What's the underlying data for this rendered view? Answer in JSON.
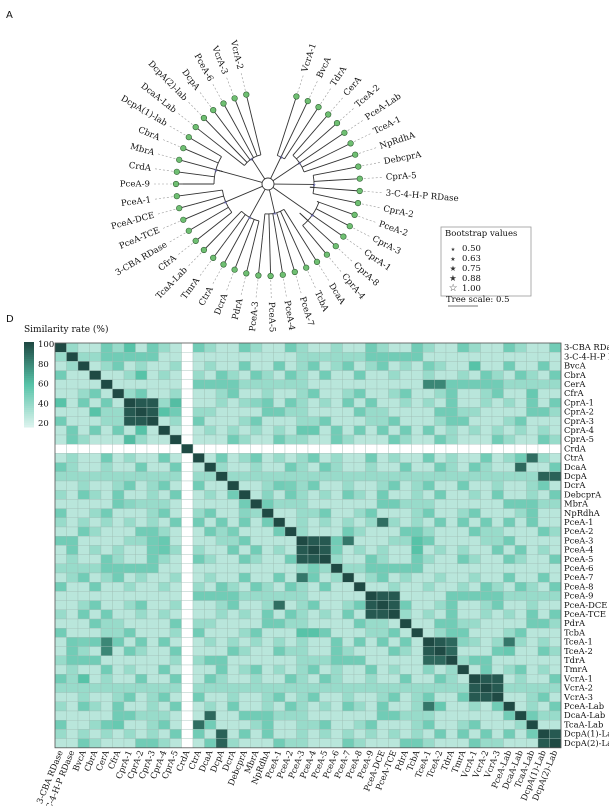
{
  "panel_a": {
    "letter": "A",
    "tree_tips": [
      "VcrA-1",
      "BvcA",
      "TdrA",
      "CerA",
      "TceA-2",
      "PceA-Lab",
      "TceA-1",
      "NpRdhA",
      "DebcprA",
      "CprA-5",
      "3-C-4-H-P RDase",
      "CprA-2",
      "PceA-2",
      "CprA-3",
      "CprA-1",
      "CprA-8",
      "CprA-4",
      "DcaA",
      "TcbA",
      "PceA-7",
      "PceA-4",
      "PceA-5",
      "PceA-3",
      "PdrA",
      "DcrA",
      "CtrA",
      "TmrA",
      "TcaA-Lab",
      "CfrA",
      "3-CBA RDase",
      "PceA-TCE",
      "PceA-DCE",
      "PceA-1",
      "PceA-9",
      "CrdA",
      "MbrA",
      "CbrA",
      "DcpA(1)-lab",
      "DcaA-Lab",
      "DcpA(2)-lab",
      "DcpA",
      "PceA-6",
      "VcrA-3",
      "VcrA-2"
    ],
    "legend_title": "Bootstrap values",
    "legend_values": [
      "0.50",
      "0.63",
      "0.75",
      "0.88",
      "1.00"
    ],
    "scale_label": "Tree scale: 0.5"
  },
  "panel_b": {
    "letter": "D",
    "legend_title": "Similarity rate (%)",
    "legend_ticks": [
      "100",
      "80",
      "60",
      "40",
      "20"
    ],
    "labels": [
      "3-CBA RDase",
      "3-C-4-H-P RDase",
      "BvcA",
      "CbrA",
      "CerA",
      "CfrA",
      "CprA-1",
      "CprA-2",
      "CprA-3",
      "CprA-4",
      "CprA-5",
      "CrdA",
      "CtrA",
      "DcaA",
      "DcpA",
      "DcrA",
      "DebcprA",
      "MbrA",
      "NpRdhA",
      "PceA-1",
      "PceA-2",
      "PceA-3",
      "PceA-4",
      "PceA-5",
      "PceA-6",
      "PceA-7",
      "PceA-8",
      "PceA-9",
      "PceA-DCE",
      "PceA-TCE",
      "PdrA",
      "TcbA",
      "TceA-1",
      "TceA-2",
      "TdrA",
      "TmrA",
      "VcrA-1",
      "VcrA-2",
      "VcrA-3",
      "PceA-Lab",
      "DcaA-Lab",
      "TcaA-Lab",
      "DcpA(1)-Lab",
      "DcpA(2)-Lab"
    ]
  },
  "chart_data": {
    "type": "heatmap",
    "title": "Similarity rate (%)",
    "color_range": [
      20,
      100
    ],
    "colors": {
      "low": "#d9f2ec",
      "mid": "#57c3a8",
      "high": "#1f4a44",
      "blank": "#ffffff"
    },
    "labels": [
      "3-CBA RDase",
      "3-C-4-H-P RDase",
      "BvcA",
      "CbrA",
      "CerA",
      "CfrA",
      "CprA-1",
      "CprA-2",
      "CprA-3",
      "CprA-4",
      "CprA-5",
      "CrdA",
      "CtrA",
      "DcaA",
      "DcpA",
      "DcrA",
      "DebcprA",
      "MbrA",
      "NpRdhA",
      "PceA-1",
      "PceA-2",
      "PceA-3",
      "PceA-4",
      "PceA-5",
      "PceA-6",
      "PceA-7",
      "PceA-8",
      "PceA-9",
      "PceA-DCE",
      "PceA-TCE",
      "PdrA",
      "TcbA",
      "TceA-1",
      "TceA-2",
      "TdrA",
      "TmrA",
      "VcrA-1",
      "VcrA-2",
      "VcrA-3",
      "PceA-Lab",
      "DcaA-Lab",
      "TcaA-Lab",
      "DcpA(1)-Lab",
      "DcpA(2)-Lab"
    ],
    "blank_index": 11,
    "base_value": 30,
    "high_pairs": [
      [
        "CprA-1",
        "CprA-2",
        95
      ],
      [
        "CprA-1",
        "CprA-3",
        95
      ],
      [
        "CprA-2",
        "CprA-3",
        95
      ],
      [
        "PceA-3",
        "PceA-4",
        95
      ],
      [
        "PceA-3",
        "PceA-5",
        95
      ],
      [
        "PceA-4",
        "PceA-5",
        95
      ],
      [
        "PceA-9",
        "PceA-DCE",
        95
      ],
      [
        "PceA-9",
        "PceA-TCE",
        95
      ],
      [
        "PceA-DCE",
        "PceA-TCE",
        95
      ],
      [
        "TceA-1",
        "TceA-2",
        95
      ],
      [
        "TceA-1",
        "TdrA",
        90
      ],
      [
        "TceA-2",
        "TdrA",
        90
      ],
      [
        "VcrA-1",
        "VcrA-2",
        95
      ],
      [
        "VcrA-1",
        "VcrA-3",
        95
      ],
      [
        "VcrA-2",
        "VcrA-3",
        95
      ],
      [
        "DcpA",
        "DcpA(1)-Lab",
        92
      ],
      [
        "DcpA",
        "DcpA(2)-Lab",
        92
      ],
      [
        "DcpA(1)-Lab",
        "DcpA(2)-Lab",
        95
      ],
      [
        "DcaA",
        "DcaA-Lab",
        90
      ],
      [
        "CtrA",
        "TcaA-Lab",
        88
      ],
      [
        "PceA-1",
        "PceA-DCE",
        88
      ],
      [
        "PceA-7",
        "PceA-3",
        85
      ],
      [
        "PceA-Lab",
        "TceA-1",
        85
      ],
      [
        "CbrA",
        "CprA-2",
        60
      ],
      [
        "CerA",
        "TceA-1",
        80
      ],
      [
        "CerA",
        "TceA-2",
        80
      ],
      [
        "BvcA",
        "VcrA-1",
        60
      ],
      [
        "CprA-5",
        "CprA-1",
        62
      ],
      [
        "CprA-4",
        "CprA-2",
        60
      ],
      [
        "3-CBA RDase",
        "CprA-1",
        60
      ]
    ],
    "mid_pairs": [
      [
        "CprA-4",
        "PceA-3",
        55
      ],
      [
        "CprA-4",
        "PceA-4",
        55
      ],
      [
        "BvcA",
        "TceA-1",
        50
      ],
      [
        "TcbA",
        "PceA-3",
        60
      ],
      [
        "TcbA",
        "PceA-4",
        60
      ],
      [
        "PceA-6",
        "PceA-4",
        50
      ],
      [
        "PceA-Lab",
        "TceA-2",
        55
      ],
      [
        "TmrA",
        "TceA-1",
        45
      ],
      [
        "DcrA",
        "PceA-2",
        50
      ],
      [
        "MbrA",
        "CprA-1",
        45
      ],
      [
        "CfrA",
        "TcaA-Lab",
        55
      ],
      [
        "DebcprA",
        "NpRdhA",
        45
      ]
    ]
  }
}
